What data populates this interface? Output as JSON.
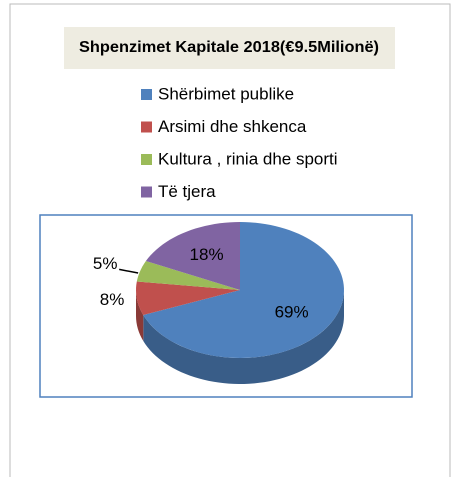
{
  "chart_data": {
    "type": "pie3d",
    "title": "Shpenzimet Kapitale 2018(€9.5Milionë)",
    "categories": [
      "Shërbimet publike",
      "Arsimi dhe shkenca",
      "Kultura , rinia dhe sporti",
      "Të tjera"
    ],
    "values": [
      69,
      8,
      5,
      18
    ],
    "value_labels": [
      "69%",
      "8%",
      "5%",
      "18%"
    ],
    "colors": [
      "#4f81bd",
      "#c0504d",
      "#9bbb59",
      "#8064a2"
    ],
    "legend": "top"
  }
}
